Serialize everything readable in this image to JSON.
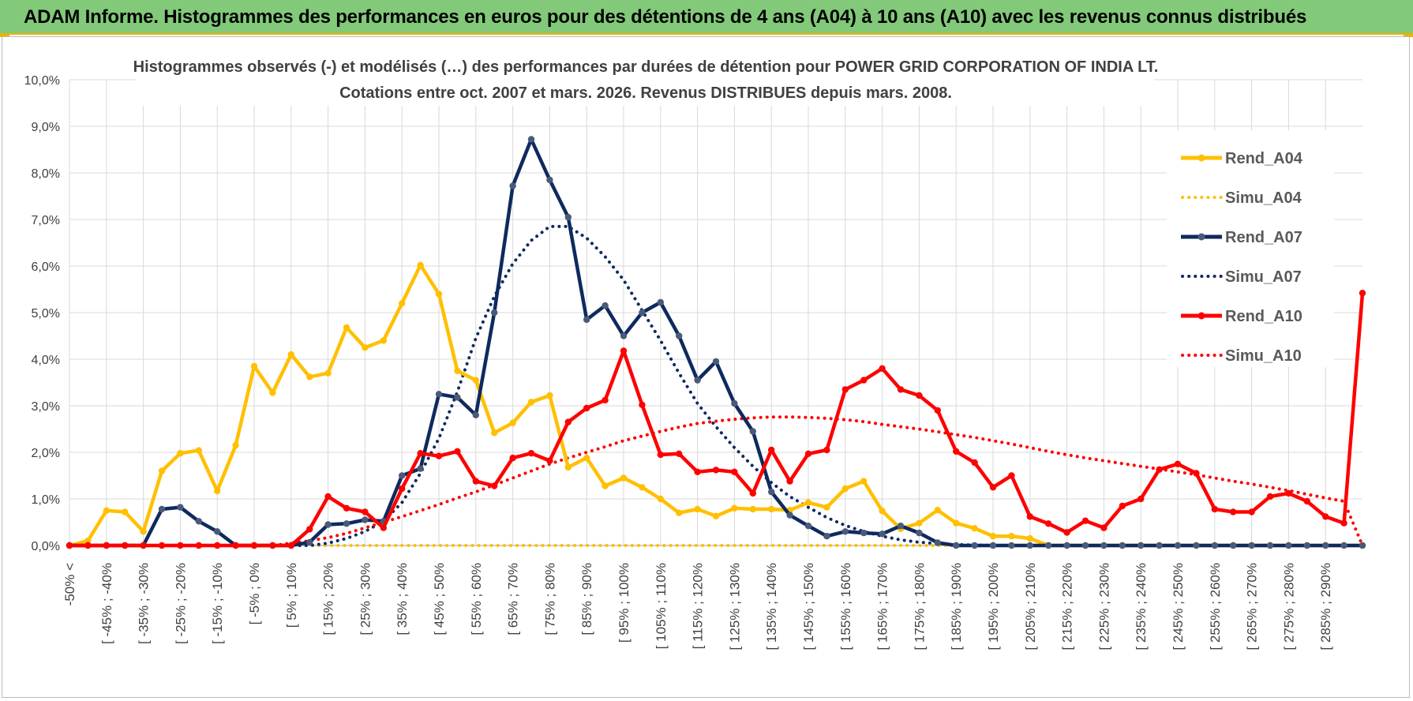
{
  "banner": {
    "title": "ADAM Informe. Histogrammes des performances en euros pour des détentions de 4 ans (A04) à 10 ans (A10) avec les revenus connus distribués"
  },
  "colors": {
    "banner_bg": "#82c97a",
    "A04": "#ffc000",
    "A07": "#0e2a5e",
    "A10": "#ff0000",
    "grid": "#d9d9d9"
  },
  "chart_data": {
    "type": "line",
    "title": "Histogrammes observés (-) et modélisés (…) des performances par durées de détention pour POWER GRID CORPORATION OF INDIA LT.",
    "subtitle": "Cotations entre oct. 2007 et mars. 2026. Revenus DISTRIBUES depuis mars. 2008.",
    "xlabel": "",
    "ylabel": "",
    "ylim": [
      0,
      10
    ],
    "y_ticks": [
      "0,0%",
      "1,0%",
      "2,0%",
      "3,0%",
      "4,0%",
      "5,0%",
      "6,0%",
      "7,0%",
      "8,0%",
      "9,0%",
      "10,0%"
    ],
    "x_tick_labels": [
      "-50% <",
      "[ -45% ; -40%",
      "[ -35% ; -30%",
      "[ -25% ; -20%",
      "[ -15% ; -10%",
      "[ -5% ; 0%",
      "[ 5% ; 10%",
      "[ 15% ; 20%",
      "[ 25% ; 30%",
      "[ 35% ; 40%",
      "[ 45% ; 50%",
      "[ 55% ; 60%",
      "[ 65% ; 70%",
      "[ 75% ; 80%",
      "[ 85% ; 90%",
      "[ 95% ; 100%",
      "[ 105% ; 110%",
      "[ 115% ; 120%",
      "[ 125% ; 130%",
      "[ 135% ; 140%",
      "[ 145% ; 150%",
      "[ 155% ; 160%",
      "[ 165% ; 170%",
      "[ 175% ; 180%",
      "[ 185% ; 190%",
      "[ 195% ; 200%",
      "[ 205% ; 210%",
      "[ 215% ; 220%",
      "[ 225% ; 230%",
      "[ 235% ; 240%",
      "[ 245% ; 250%",
      "[ 255% ; 260%",
      "[ 265% ; 270%",
      "[ 275% ; 280%",
      "[ 285% ; 290%"
    ],
    "grid": true,
    "legend_position": "right",
    "series": [
      {
        "name": "Rend_A04",
        "color": "#ffc000",
        "style": "solid-markers",
        "values": [
          0.0,
          0.1,
          0.75,
          0.72,
          0.3,
          1.6,
          1.98,
          2.04,
          1.17,
          2.15,
          3.85,
          3.28,
          4.1,
          3.62,
          3.7,
          4.68,
          4.25,
          4.4,
          5.2,
          6.02,
          5.4,
          3.75,
          3.55,
          2.42,
          2.63,
          3.08,
          3.22,
          1.68,
          1.88,
          1.28,
          1.45,
          1.25,
          1.0,
          0.7,
          0.78,
          0.63,
          0.8,
          0.78,
          0.78,
          0.76,
          0.92,
          0.82,
          1.22,
          1.38,
          0.74,
          0.36,
          0.48,
          0.76,
          0.48,
          0.37,
          0.2,
          0.2,
          0.15,
          0.0,
          0.0,
          0.0,
          0.0,
          0.0,
          0.0,
          0.0,
          0.0,
          0.0,
          0.0,
          0.0,
          0.0,
          0.0,
          0.0,
          0.0,
          0.0,
          0.0,
          0.0
        ]
      },
      {
        "name": "Simu_A04",
        "color": "#ffc000",
        "style": "dotted",
        "values": [
          0.0,
          0.0,
          0.0,
          0.0,
          0.0,
          0.0,
          0.0,
          0.0,
          0.0,
          0.0,
          0.0,
          0.0,
          0.0,
          0.0,
          0.0,
          0.0,
          0.0,
          0.0,
          0.0,
          0.0,
          0.0,
          0.0,
          0.0,
          0.0,
          0.0,
          0.0,
          0.0,
          0.0,
          0.0,
          0.0,
          0.0,
          0.0,
          0.0,
          0.0,
          0.0,
          0.0,
          0.0,
          0.0,
          0.0,
          0.0,
          0.0,
          0.0,
          0.0,
          0.0,
          0.0,
          0.0,
          0.0,
          0.0,
          0.0,
          0.0,
          0.0,
          0.0,
          0.0,
          0.0,
          0.0,
          0.0,
          0.0,
          0.0,
          0.0,
          0.0,
          0.0,
          0.0,
          0.0,
          0.0,
          0.0,
          0.0,
          0.0,
          0.0,
          0.0,
          0.0,
          0.0
        ]
      },
      {
        "name": "Rend_A07",
        "color": "#0e2a5e",
        "style": "solid-markers",
        "values": [
          0.0,
          0.0,
          0.0,
          0.0,
          0.0,
          0.78,
          0.82,
          0.52,
          0.3,
          0.0,
          0.0,
          0.0,
          0.0,
          0.07,
          0.45,
          0.47,
          0.55,
          0.52,
          1.5,
          1.65,
          3.25,
          3.18,
          2.8,
          5.0,
          7.72,
          8.72,
          7.85,
          7.05,
          4.85,
          5.15,
          4.5,
          5.0,
          5.22,
          4.5,
          3.55,
          3.95,
          3.05,
          2.45,
          1.15,
          0.65,
          0.42,
          0.2,
          0.3,
          0.27,
          0.25,
          0.42,
          0.27,
          0.06,
          0.0,
          0.0,
          0.0,
          0.0,
          0.0,
          0.0,
          0.0,
          0.0,
          0.0,
          0.0,
          0.0,
          0.0,
          0.0,
          0.0,
          0.0,
          0.0,
          0.0,
          0.0,
          0.0,
          0.0,
          0.0,
          0.0,
          0.0
        ]
      },
      {
        "name": "Simu_A07",
        "color": "#0e2a5e",
        "style": "dotted",
        "values": [
          0.0,
          0.0,
          0.0,
          0.0,
          0.0,
          0.0,
          0.0,
          0.0,
          0.0,
          0.0,
          0.0,
          0.0,
          0.0,
          0.0,
          0.05,
          0.15,
          0.3,
          0.52,
          0.92,
          1.55,
          2.3,
          3.3,
          4.45,
          5.35,
          6.05,
          6.55,
          6.85,
          6.85,
          6.6,
          6.2,
          5.7,
          5.05,
          4.4,
          3.7,
          3.05,
          2.55,
          2.1,
          1.7,
          1.35,
          1.05,
          0.82,
          0.6,
          0.43,
          0.3,
          0.2,
          0.12,
          0.07,
          0.04,
          0.02,
          0.01,
          0.0,
          0.0,
          0.0,
          0.0,
          0.0,
          0.0,
          0.0,
          0.0,
          0.0,
          0.0,
          0.0,
          0.0,
          0.0,
          0.0,
          0.0,
          0.0,
          0.0,
          0.0,
          0.0,
          0.0,
          0.0
        ]
      },
      {
        "name": "Rend_A10",
        "color": "#ff0000",
        "style": "solid-markers",
        "values": [
          0.0,
          0.0,
          0.0,
          0.0,
          0.0,
          0.0,
          0.0,
          0.0,
          0.0,
          0.0,
          0.0,
          0.0,
          0.0,
          0.35,
          1.05,
          0.8,
          0.72,
          0.38,
          1.22,
          1.98,
          1.92,
          2.02,
          1.38,
          1.28,
          1.88,
          1.98,
          1.82,
          2.65,
          2.95,
          3.12,
          4.18,
          3.02,
          1.95,
          1.97,
          1.58,
          1.62,
          1.58,
          1.12,
          2.05,
          1.38,
          1.97,
          2.05,
          3.35,
          3.55,
          3.8,
          3.35,
          3.22,
          2.9,
          2.02,
          1.78,
          1.25,
          1.5,
          0.62,
          0.47,
          0.28,
          0.53,
          0.38,
          0.85,
          1.0,
          1.63,
          1.75,
          1.55,
          0.78,
          0.72,
          0.72,
          1.05,
          1.12,
          0.95,
          0.62,
          0.48,
          5.42
        ]
      },
      {
        "name": "Simu_A10",
        "color": "#ff0000",
        "style": "dotted",
        "values": [
          0.0,
          0.0,
          0.0,
          0.0,
          0.0,
          0.0,
          0.0,
          0.0,
          0.0,
          0.0,
          0.0,
          0.0,
          0.05,
          0.1,
          0.17,
          0.26,
          0.38,
          0.5,
          0.62,
          0.75,
          0.88,
          1.02,
          1.15,
          1.3,
          1.45,
          1.6,
          1.75,
          1.88,
          2.0,
          2.12,
          2.25,
          2.35,
          2.45,
          2.54,
          2.62,
          2.67,
          2.71,
          2.74,
          2.76,
          2.76,
          2.75,
          2.73,
          2.7,
          2.66,
          2.6,
          2.55,
          2.5,
          2.44,
          2.38,
          2.32,
          2.25,
          2.18,
          2.1,
          2.02,
          1.95,
          1.88,
          1.82,
          1.76,
          1.7,
          1.64,
          1.58,
          1.52,
          1.45,
          1.38,
          1.32,
          1.25,
          1.18,
          1.1,
          1.02,
          0.95,
          0.0
        ]
      }
    ]
  }
}
